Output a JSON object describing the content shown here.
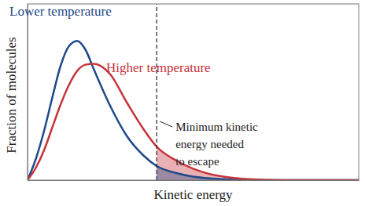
{
  "chart_data": {
    "type": "line",
    "x_label": "Kinetic energy",
    "y_label": "Fraction of molecules",
    "x": [
      0,
      0.25,
      0.5,
      0.75,
      1,
      1.25,
      1.5,
      1.75,
      2,
      2.5,
      3,
      3.5,
      3.9,
      4.5,
      5,
      5.5,
      6,
      6.5,
      7,
      7.5,
      8,
      10
    ],
    "series": [
      {
        "name": "Lower temperature",
        "color": "#1f4a8a",
        "values": [
          0,
          0.12,
          0.28,
          0.47,
          0.65,
          0.76,
          0.79,
          0.74,
          0.63,
          0.42,
          0.25,
          0.14,
          0.08,
          0.04,
          0.02,
          0.01,
          0.005,
          0.002,
          0.001,
          0,
          0,
          0
        ]
      },
      {
        "name": "Higher temperature",
        "color": "#c7323b",
        "values": [
          0,
          0.07,
          0.17,
          0.3,
          0.43,
          0.54,
          0.62,
          0.655,
          0.66,
          0.6,
          0.44,
          0.29,
          0.19,
          0.11,
          0.065,
          0.035,
          0.018,
          0.008,
          0.003,
          0.001,
          0,
          0
        ]
      }
    ],
    "xlim": [
      0,
      10
    ],
    "ylim": [
      0,
      1
    ],
    "tick_labels": false,
    "annotation": {
      "x": 3.9,
      "text": [
        "Minimum kinetic",
        "energy needed",
        "to escape"
      ]
    }
  }
}
